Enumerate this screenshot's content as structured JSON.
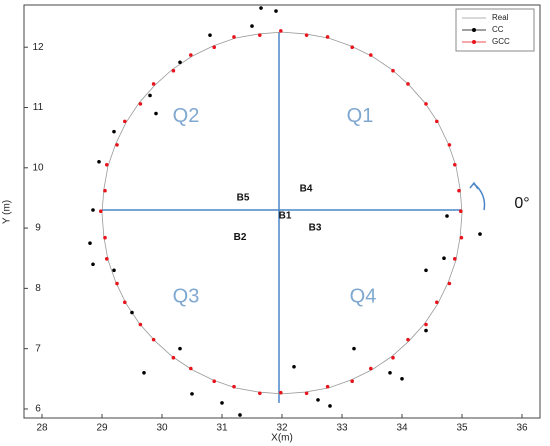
{
  "chart_data": {
    "type": "scatter",
    "xlabel": "X(m)",
    "ylabel": "Y (m)",
    "xlim": [
      27.7,
      36.3
    ],
    "ylim": [
      5.85,
      12.7
    ],
    "xticks": [
      28,
      29,
      30,
      31,
      32,
      33,
      34,
      35,
      36
    ],
    "yticks": [
      6,
      7,
      8,
      9,
      10,
      11,
      12
    ],
    "legend": "upper right",
    "series": [
      {
        "name": "Real",
        "color": "#999999",
        "mode": "line",
        "x": [
          35.0,
          34.97,
          34.9,
          34.77,
          34.6,
          34.38,
          34.12,
          33.83,
          33.5,
          33.15,
          32.78,
          32.39,
          32.0,
          31.61,
          31.22,
          30.85,
          30.5,
          30.17,
          29.88,
          29.62,
          29.4,
          29.23,
          29.1,
          29.03,
          29.0,
          29.03,
          29.1,
          29.23,
          29.4,
          29.62,
          29.88,
          30.17,
          30.5,
          30.85,
          31.22,
          31.61,
          32.0,
          32.39,
          32.78,
          33.15,
          33.5,
          33.83,
          34.12,
          34.38,
          34.6,
          34.77,
          34.9,
          34.97,
          35.0
        ],
        "y": [
          9.25,
          9.64,
          10.03,
          10.4,
          10.75,
          11.08,
          11.37,
          11.63,
          11.85,
          12.02,
          12.15,
          12.22,
          12.25,
          12.22,
          12.15,
          12.02,
          11.85,
          11.63,
          11.37,
          11.08,
          10.75,
          10.4,
          10.03,
          9.64,
          9.25,
          8.86,
          8.47,
          8.1,
          7.75,
          7.42,
          7.13,
          6.87,
          6.65,
          6.48,
          6.35,
          6.28,
          6.25,
          6.28,
          6.35,
          6.48,
          6.65,
          6.87,
          7.13,
          7.42,
          7.75,
          8.1,
          8.47,
          8.86,
          9.25
        ]
      },
      {
        "name": "CC",
        "color": "#000000",
        "mode": "markers",
        "x": [
          31.65,
          31.9,
          31.5,
          30.8,
          30.3,
          29.8,
          29.9,
          29.2,
          28.95,
          28.85,
          28.8,
          28.85,
          29.2,
          29.5,
          29.7,
          30.3,
          30.5,
          31.0,
          31.3,
          32.2,
          32.6,
          33.2,
          33.8,
          34.0,
          34.4,
          34.7,
          34.4,
          34.75,
          35.3,
          32.8
        ],
        "y": [
          12.65,
          12.6,
          12.35,
          12.2,
          11.75,
          11.2,
          10.9,
          10.6,
          10.1,
          9.3,
          8.75,
          8.4,
          8.3,
          7.6,
          6.6,
          7.0,
          6.25,
          6.1,
          5.9,
          6.7,
          6.15,
          7.0,
          6.6,
          6.5,
          7.3,
          8.5,
          8.3,
          9.2,
          8.9,
          6.05
        ]
      },
      {
        "name": "GCC",
        "color": "#e8141c",
        "mode": "markers",
        "x": [
          34.98,
          34.95,
          34.88,
          34.79,
          34.58,
          34.4,
          34.1,
          33.85,
          33.48,
          33.17,
          32.76,
          32.41,
          31.98,
          31.63,
          31.2,
          30.87,
          30.48,
          30.19,
          29.86,
          29.64,
          29.38,
          29.25,
          29.08,
          29.05,
          28.98,
          29.05,
          29.08,
          29.25,
          29.38,
          29.64,
          29.86,
          30.19,
          30.48,
          30.87,
          31.2,
          31.63,
          31.98,
          32.41,
          32.76,
          33.17,
          33.48,
          33.85,
          34.1,
          34.4,
          34.58,
          34.79,
          34.88,
          34.99
        ],
        "y": [
          9.28,
          9.62,
          10.05,
          10.38,
          10.77,
          11.06,
          11.39,
          11.61,
          11.87,
          12.0,
          12.17,
          12.2,
          12.27,
          12.2,
          12.17,
          12.0,
          11.87,
          11.61,
          11.39,
          11.06,
          10.77,
          10.38,
          10.05,
          9.62,
          9.28,
          8.84,
          8.49,
          8.08,
          7.77,
          7.4,
          7.15,
          6.85,
          6.67,
          6.46,
          6.37,
          6.26,
          6.27,
          6.26,
          6.37,
          6.46,
          6.67,
          6.85,
          7.15,
          7.4,
          7.77,
          8.08,
          8.49,
          8.84
        ]
      }
    ],
    "reference_lines": [
      {
        "color": "#4a86c5",
        "x": [
          29.0,
          35.0
        ],
        "y": [
          9.3,
          9.3
        ]
      },
      {
        "color": "#4a86c5",
        "x": [
          31.95,
          31.95
        ],
        "y": [
          6.1,
          12.25
        ]
      }
    ],
    "annotations": [
      {
        "text": "Q1",
        "x": 33.3,
        "y": 10.85,
        "style": "q"
      },
      {
        "text": "Q2",
        "x": 30.4,
        "y": 10.85,
        "style": "q"
      },
      {
        "text": "Q3",
        "x": 30.4,
        "y": 7.85,
        "style": "q"
      },
      {
        "text": "Q4",
        "x": 33.35,
        "y": 7.85,
        "style": "q"
      },
      {
        "text": "B1",
        "x": 32.05,
        "y": 9.2,
        "style": "b"
      },
      {
        "text": "B2",
        "x": 31.3,
        "y": 8.85,
        "style": "b"
      },
      {
        "text": "B3",
        "x": 32.55,
        "y": 9.0,
        "style": "b"
      },
      {
        "text": "B4",
        "x": 32.4,
        "y": 9.65,
        "style": "b"
      },
      {
        "text": "B5",
        "x": 31.35,
        "y": 9.5,
        "style": "b"
      },
      {
        "text": "0°",
        "x": 36.0,
        "y": 9.4,
        "style": "deg"
      }
    ]
  }
}
